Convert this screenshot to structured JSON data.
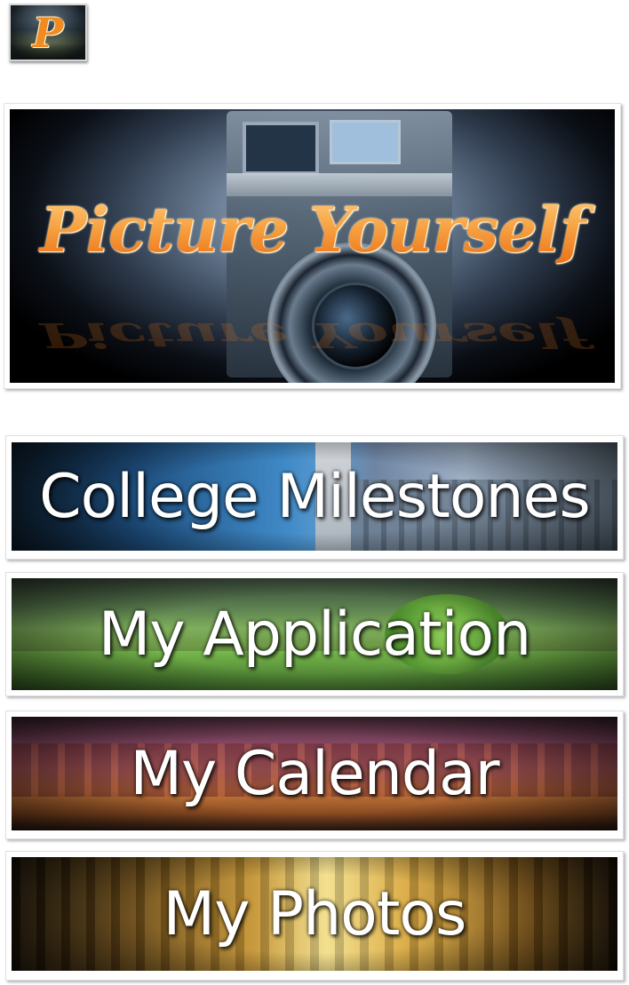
{
  "app_icon": {
    "glyph": "P"
  },
  "banner": {
    "title": "Picture Yourself"
  },
  "menu": {
    "items": [
      {
        "label": "College Milestones"
      },
      {
        "label": "My Application"
      },
      {
        "label": "My Calendar"
      },
      {
        "label": "My Photos"
      }
    ]
  },
  "colors": {
    "accent_orange": "#f07d1c",
    "tile_text": "#ffffff",
    "background": "#ffffff"
  }
}
